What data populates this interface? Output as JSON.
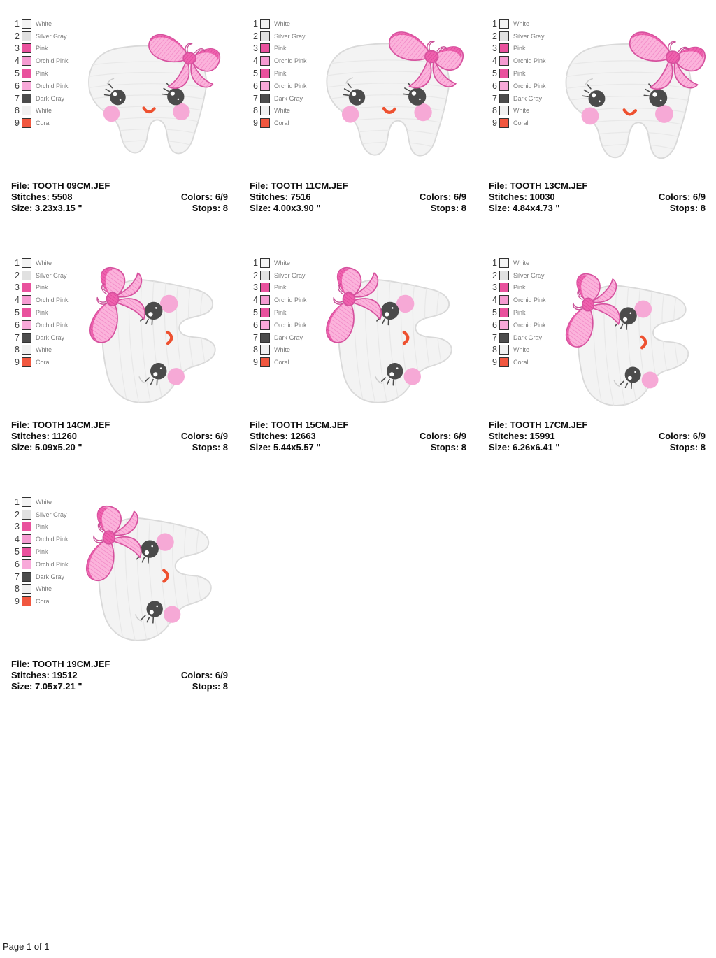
{
  "page": {
    "footer": "Page 1 of 1"
  },
  "labels": {
    "file": "File:",
    "stitches": "Stitches:",
    "colors": "Colors:",
    "size": "Size:",
    "stops": "Stops:"
  },
  "legend": [
    {
      "num": "1",
      "label": "White",
      "hex": "#F4F4F4"
    },
    {
      "num": "2",
      "label": "Silver Gray",
      "hex": "#E1E1E1"
    },
    {
      "num": "3",
      "label": "Pink",
      "hex": "#E9519D"
    },
    {
      "num": "4",
      "label": "Orchid Pink",
      "hex": "#F59BD1"
    },
    {
      "num": "5",
      "label": "Pink",
      "hex": "#E9519D"
    },
    {
      "num": "6",
      "label": "Orchid Pink",
      "hex": "#F8A9D9"
    },
    {
      "num": "7",
      "label": "Dark Gray",
      "hex": "#4C4C4C"
    },
    {
      "num": "8",
      "label": "White",
      "hex": "#F1F1F1"
    },
    {
      "num": "9",
      "label": "Coral",
      "hex": "#F1573F"
    }
  ],
  "designs": [
    {
      "file": "TOOTH 09CM.JEF",
      "stitches": "5508",
      "colors": "6/9",
      "size": "3.23x3.15 \"",
      "stops": "8"
    },
    {
      "file": "TOOTH 11CM.JEF",
      "stitches": "7516",
      "colors": "6/9",
      "size": "4.00x3.90 \"",
      "stops": "8"
    },
    {
      "file": "TOOTH 13CM.JEF",
      "stitches": "10030",
      "colors": "6/9",
      "size": "4.84x4.73 \"",
      "stops": "8"
    },
    {
      "file": "TOOTH 14CM.JEF",
      "stitches": "11260",
      "colors": "6/9",
      "size": "5.09x5.20 \"",
      "stops": "8"
    },
    {
      "file": "TOOTH 15CM.JEF",
      "stitches": "12663",
      "colors": "6/9",
      "size": "5.44x5.57 \"",
      "stops": "8"
    },
    {
      "file": "TOOTH 17CM.JEF",
      "stitches": "15991",
      "colors": "6/9",
      "size": "6.26x6.41 \"",
      "stops": "8"
    },
    {
      "file": "TOOTH 19CM.JEF",
      "stitches": "19512",
      "colors": "6/9",
      "size": "7.05x7.21 \"",
      "stops": "8"
    }
  ],
  "artwork": {
    "subject": "kawaii tooth with pink bow",
    "tooth_fill": "#F3F3F3",
    "tooth_outline": "#D9D9D9",
    "bow_pink": "#FBB3DB",
    "bow_dark_pink": "#EE62AE",
    "bow_outline": "#D6519E",
    "eye_color": "#4B4B4B",
    "cheek_color": "#F6A9D6",
    "mouth_color": "#EE5130"
  }
}
